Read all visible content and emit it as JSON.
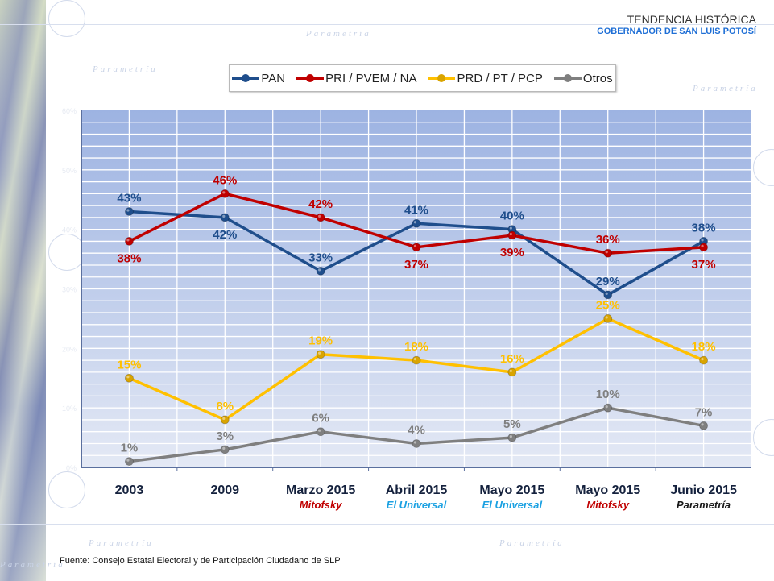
{
  "header": {
    "title": "TENDENCIA HISTÓRICA",
    "subtitle": "GOBERNADOR DE SAN LUIS POTOSÍ"
  },
  "watermark": {
    "text": "Parametría"
  },
  "footer": {
    "source": "Fuente: Consejo Estatal Electoral y de Participación Ciudadano de SLP"
  },
  "chart_data": {
    "type": "line",
    "title": "TENDENCIA HISTÓRICA",
    "subtitle": "GOBERNADOR DE SAN LUIS POTOSÍ",
    "xlabel": "",
    "ylabel": "",
    "ylim": [
      0,
      60
    ],
    "yticks": [
      "0%",
      "10%",
      "20%",
      "30%",
      "40%",
      "50%",
      "60%"
    ],
    "grid": true,
    "legend_position": "top-center",
    "categories": [
      "2003",
      "2009",
      "Marzo 2015",
      "Abril 2015",
      "Mayo 2015",
      "Mayo 2015",
      "Junio 2015"
    ],
    "category_sources": [
      "",
      "",
      "Mitofsky",
      "El Universal",
      "El Universal",
      "Mitofsky",
      "Parametría"
    ],
    "source_colors": {
      "Mitofsky": "#c00000",
      "El Universal": "#1ba1e2",
      "Parametría": "#1a1a1a"
    },
    "series": [
      {
        "name": "PAN",
        "color": "#1f4e8c",
        "values": [
          43,
          42,
          33,
          41,
          40,
          29,
          38
        ],
        "label_pos": [
          "above",
          "below",
          "above",
          "above",
          "above",
          "above",
          "above"
        ]
      },
      {
        "name": "PRI / PVEM / NA",
        "color": "#c00000",
        "values": [
          38,
          46,
          42,
          37,
          39,
          36,
          37
        ],
        "label_pos": [
          "below",
          "above",
          "above",
          "below",
          "below",
          "above",
          "below"
        ]
      },
      {
        "name": "PRD / PT / PCP",
        "color": "#ffc000",
        "values": [
          15,
          8,
          19,
          18,
          16,
          25,
          18
        ],
        "label_pos": [
          "above",
          "above",
          "above",
          "above",
          "above",
          "above",
          "above"
        ]
      },
      {
        "name": "Otros",
        "color": "#7f7f7f",
        "values": [
          1,
          3,
          6,
          4,
          5,
          10,
          7
        ],
        "label_pos": [
          "above",
          "above",
          "above",
          "above",
          "above",
          "above",
          "above"
        ]
      }
    ],
    "label_suffix": "%"
  }
}
